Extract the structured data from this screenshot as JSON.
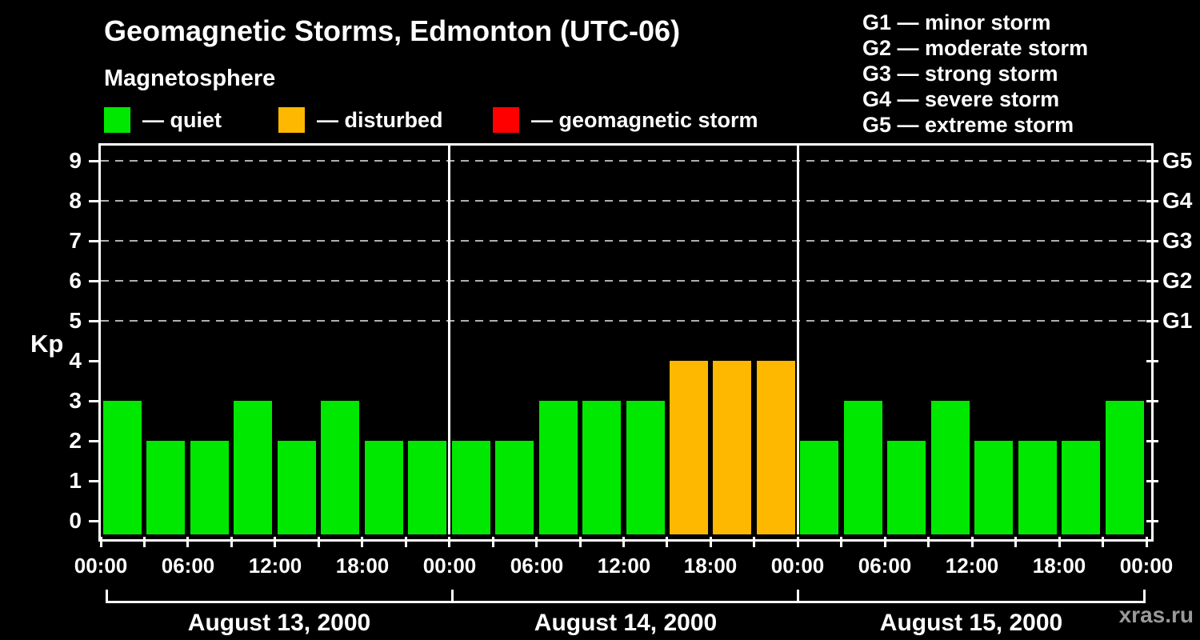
{
  "title": "Geomagnetic Storms, Edmonton (UTC-06)",
  "watermark": "xras.ru",
  "magnetosphere_legend": {
    "title": "Magnetosphere",
    "items": [
      {
        "name": "quiet",
        "label": "— quiet",
        "color": "#00e800"
      },
      {
        "name": "disturbed",
        "label": "— disturbed",
        "color": "#ffb800"
      },
      {
        "name": "geomagnetic-storm",
        "label": "— geomagnetic storm",
        "color": "#ff0000"
      }
    ]
  },
  "g_scale_legend": [
    "G1 — minor storm",
    "G2 — moderate storm",
    "G3 — strong storm",
    "G4 — severe storm",
    "G5 — extreme storm"
  ],
  "chart_data": {
    "type": "bar",
    "title": "Geomagnetic Storms, Edmonton (UTC-06)",
    "ylabel": "Kp",
    "ylim": [
      0,
      9.4
    ],
    "yticks": [
      0,
      1,
      2,
      3,
      4,
      5,
      6,
      7,
      8,
      9
    ],
    "gridlines_at_kp": [
      5,
      6,
      7,
      8,
      9
    ],
    "grid_style": "dashed",
    "right_axis_labels": [
      {
        "kp": 5,
        "label": "G1"
      },
      {
        "kp": 6,
        "label": "G2"
      },
      {
        "kp": 7,
        "label": "G3"
      },
      {
        "kp": 8,
        "label": "G4"
      },
      {
        "kp": 9,
        "label": "G5"
      }
    ],
    "interval_hours": 3,
    "days": [
      {
        "date": "August 13, 2000",
        "values": [
          3,
          2,
          2,
          3,
          2,
          3,
          2,
          2
        ]
      },
      {
        "date": "August 14, 2000",
        "values": [
          2,
          2,
          3,
          3,
          3,
          4,
          4,
          4
        ]
      },
      {
        "date": "August 15, 2000",
        "values": [
          2,
          3,
          2,
          3,
          2,
          2,
          2,
          3
        ]
      }
    ],
    "x_tick_labels": [
      "00:00",
      "06:00",
      "12:00",
      "18:00",
      "00:00",
      "06:00",
      "12:00",
      "18:00",
      "00:00",
      "06:00",
      "12:00",
      "18:00",
      "00:00"
    ],
    "color_rules": {
      "quiet_kp_max": 3,
      "disturbed_kp_max": 4
    },
    "colors": {
      "quiet": "#00e800",
      "disturbed": "#ffb800",
      "storm": "#ff0000",
      "grid": "#b0b0b0",
      "axis": "#ffffff",
      "background": "#000000"
    }
  }
}
